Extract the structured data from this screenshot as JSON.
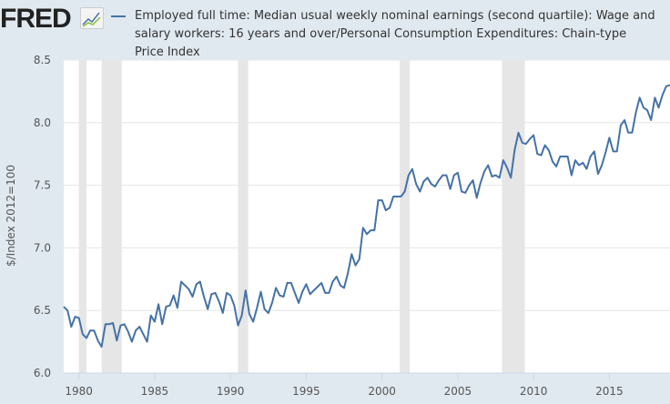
{
  "brand": {
    "logo_text": "FRED",
    "logo_icon": "line-chart-icon"
  },
  "chart_data": {
    "type": "line",
    "title": "",
    "legend": [
      "Employed full time: Median usual weekly nominal earnings (second quartile): Wage and salary workers: 16 years and over/Personal Consumption Expenditures: Chain-type Price Index"
    ],
    "legend_placement": "top",
    "ylabel": "$/Index 2012=100",
    "xlabel": "",
    "ylim": [
      6.0,
      8.5
    ],
    "xlim": [
      1979.0,
      2019.0
    ],
    "yticks": [
      "6.0",
      "6.5",
      "7.0",
      "7.5",
      "8.0",
      "8.5"
    ],
    "xticks": [
      "1980",
      "1985",
      "1990",
      "1995",
      "2000",
      "2005",
      "2010",
      "2015"
    ],
    "grid": true,
    "series_color": "#4572a7",
    "frequency": "quarterly",
    "start": 1979.0,
    "recessions": [
      [
        1980.0,
        1980.5
      ],
      [
        1981.5,
        1982.83
      ],
      [
        1990.5,
        1991.17
      ],
      [
        2001.17,
        2001.83
      ],
      [
        2007.92,
        2009.42
      ]
    ],
    "values": [
      6.53,
      6.5,
      6.37,
      6.45,
      6.44,
      6.31,
      6.28,
      6.34,
      6.34,
      6.26,
      6.21,
      6.39,
      6.39,
      6.4,
      6.26,
      6.38,
      6.39,
      6.33,
      6.25,
      6.34,
      6.37,
      6.31,
      6.25,
      6.46,
      6.41,
      6.55,
      6.39,
      6.53,
      6.54,
      6.62,
      6.52,
      6.73,
      6.7,
      6.67,
      6.61,
      6.71,
      6.73,
      6.61,
      6.51,
      6.63,
      6.64,
      6.57,
      6.48,
      6.64,
      6.62,
      6.54,
      6.38,
      6.46,
      6.66,
      6.47,
      6.41,
      6.52,
      6.65,
      6.51,
      6.48,
      6.56,
      6.68,
      6.62,
      6.61,
      6.72,
      6.72,
      6.64,
      6.56,
      6.65,
      6.71,
      6.63,
      6.66,
      6.69,
      6.72,
      6.64,
      6.64,
      6.73,
      6.77,
      6.7,
      6.68,
      6.8,
      6.95,
      6.86,
      6.91,
      7.16,
      7.11,
      7.14,
      7.14,
      7.38,
      7.38,
      7.3,
      7.32,
      7.41,
      7.41,
      7.41,
      7.45,
      7.58,
      7.63,
      7.51,
      7.45,
      7.53,
      7.56,
      7.51,
      7.49,
      7.54,
      7.58,
      7.58,
      7.47,
      7.58,
      7.6,
      7.45,
      7.44,
      7.5,
      7.54,
      7.4,
      7.52,
      7.61,
      7.66,
      7.57,
      7.58,
      7.56,
      7.7,
      7.64,
      7.56,
      7.78,
      7.92,
      7.84,
      7.83,
      7.87,
      7.9,
      7.75,
      7.74,
      7.82,
      7.78,
      7.69,
      7.65,
      7.73,
      7.73,
      7.73,
      7.58,
      7.7,
      7.66,
      7.68,
      7.63,
      7.73,
      7.77,
      7.59,
      7.66,
      7.76,
      7.88,
      7.77,
      7.77,
      7.98,
      8.02,
      7.92,
      7.92,
      8.08,
      8.2,
      8.12,
      8.1,
      8.02,
      8.2,
      8.12,
      8.22,
      8.29,
      8.3
    ]
  }
}
